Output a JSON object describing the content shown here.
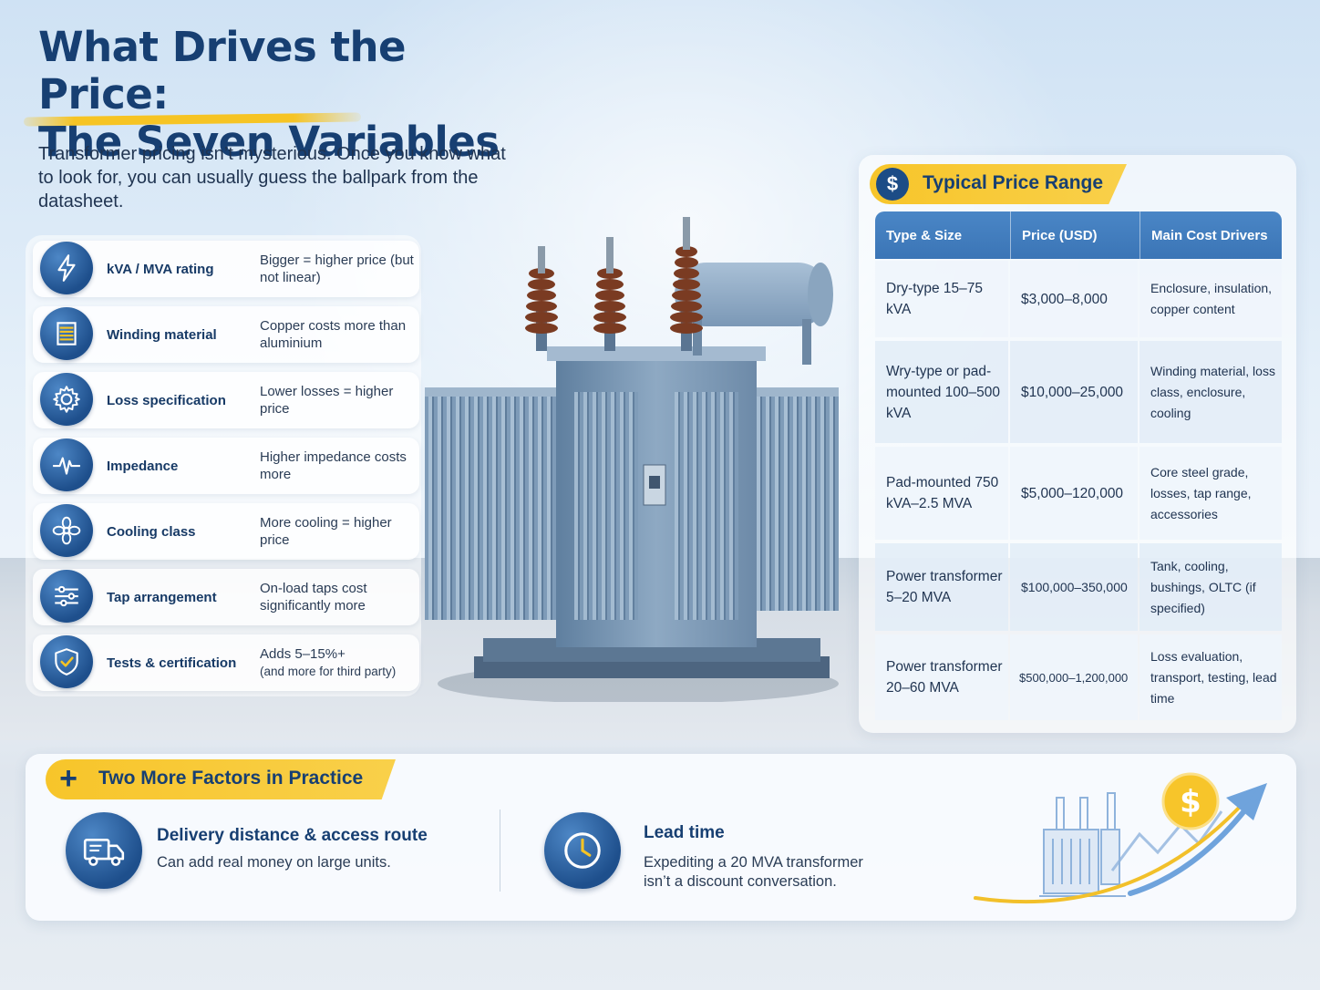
{
  "title": {
    "line1": "What Drives the Price:",
    "line2": "The Seven Variables"
  },
  "intro": "Transformer pricing isn’t mysterious. Once you know what to look for, you can usually guess the ballpark from the datasheet.",
  "variables": [
    {
      "icon": "lightning-bolt-icon",
      "name": "kVA / MVA rating",
      "desc": "Bigger = higher price (but not linear)"
    },
    {
      "icon": "coil-winding-icon",
      "name": "Winding material",
      "desc": "Copper costs more than aluminium"
    },
    {
      "icon": "gear-icon",
      "name": "Loss specification",
      "desc": "Lower losses = higher price"
    },
    {
      "icon": "waveform-icon",
      "name": "Impedance",
      "desc": "Higher impedance costs more"
    },
    {
      "icon": "fan-icon",
      "name": "Cooling class",
      "desc": "More cooling = higher price"
    },
    {
      "icon": "sliders-icon",
      "name": "Tap arrangement",
      "desc": "On-load taps cost significantly more"
    },
    {
      "icon": "shield-check-icon",
      "name": "Tests & certification",
      "desc": "Adds 5–15%+",
      "desc_note": "(and more for third party)"
    }
  ],
  "price_table": {
    "title": "Typical Price Range",
    "icon": "dollar-icon",
    "headers": [
      "Type & Size",
      "Price (USD)",
      "Main Cost Drivers"
    ],
    "rows": [
      {
        "type": "Dry-type 15–75 kVA",
        "price": "$3,000–8,000",
        "drivers": "Enclosure, insulation, copper content"
      },
      {
        "type": "Wry-type or pad-mounted 100–500 kVA",
        "price": "$10,000–25,000",
        "drivers": "Winding material, loss class, enclosure, cooling"
      },
      {
        "type": "Pad-mounted 750 kVA–2.5 MVA",
        "price": "$5,000–120,000",
        "drivers": "Core steel grade, losses, tap range, accessories"
      },
      {
        "type": "Power transformer 5–20 MVA",
        "price": "$100,000–350,000",
        "drivers": "Tank, cooling, bushings, OLTC (if specified)"
      },
      {
        "type": "Power transformer 20–60 MVA",
        "price": "$500,000–1,200,000",
        "drivers": "Loss evaluation, transport, testing, lead time"
      }
    ]
  },
  "bottom": {
    "title": "Two More Factors in Practice",
    "factors": [
      {
        "icon": "delivery-truck-icon",
        "title": "Delivery distance & access route",
        "desc": "Can add real money on large units."
      },
      {
        "icon": "clock-icon",
        "title": "Lead time",
        "desc": "Expediting a 20 MVA transformer isn’t a discount conversation."
      }
    ],
    "dollar_sign": "$"
  },
  "colors": {
    "title": "#173f72",
    "accent_yellow": "#f7c52a",
    "icon_blue": "#1e4f8c",
    "table_header": "#3b75b6"
  }
}
